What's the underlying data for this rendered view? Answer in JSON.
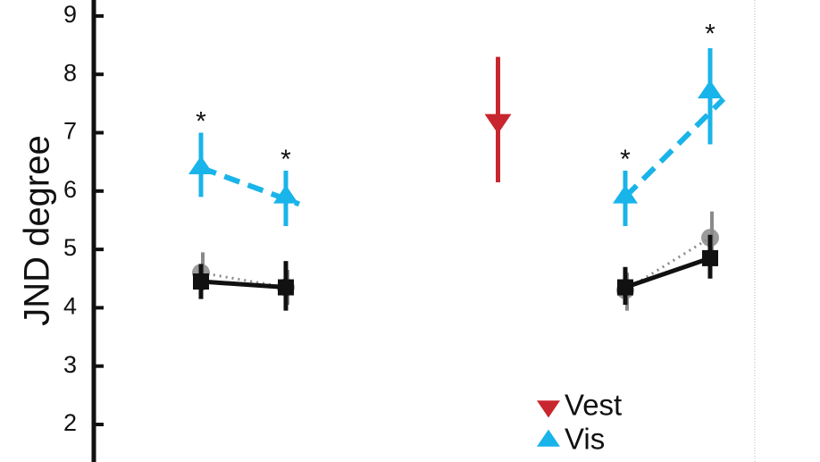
{
  "chart_data": {
    "type": "line",
    "title": "",
    "xlabel": "",
    "ylabel": "JND degree",
    "ylim": [
      1.5,
      9.4
    ],
    "yticks": [
      2,
      3,
      4,
      5,
      6,
      7,
      8,
      9
    ],
    "grid": false,
    "legend_position": "bottom-right",
    "x": [
      1,
      2,
      4.5,
      6,
      7
    ],
    "colors": {
      "vest": "#c8262e",
      "vis": "#19b4ea",
      "combined": "#111111",
      "predicted": "#8a8a8a"
    },
    "series": [
      {
        "name": "Vis",
        "marker": "triangle-up",
        "groups": [
          {
            "x": [
              1,
              2
            ],
            "y": [
              6.4,
              5.9
            ],
            "err": [
              [
                5.9,
                7.0
              ],
              [
                5.4,
                6.35
              ]
            ]
          },
          {
            "x": [
              6,
              7
            ],
            "y": [
              5.9,
              7.7
            ],
            "err": [
              [
                5.4,
                6.35
              ],
              [
                6.8,
                8.45
              ]
            ]
          }
        ]
      },
      {
        "name": "Vest",
        "marker": "triangle-down",
        "groups": [
          {
            "x": [
              4.5
            ],
            "y": [
              7.2
            ],
            "err": [
              [
                6.15,
                8.3
              ]
            ]
          }
        ]
      },
      {
        "name": "",
        "marker": "square",
        "groups": [
          {
            "x": [
              1,
              2
            ],
            "y": [
              4.45,
              4.35
            ],
            "err": [
              [
                4.15,
                4.75
              ],
              [
                3.95,
                4.8
              ]
            ]
          },
          {
            "x": [
              6,
              7
            ],
            "y": [
              4.35,
              4.85
            ],
            "err": [
              [
                4.05,
                4.7
              ],
              [
                4.5,
                5.25
              ]
            ]
          }
        ]
      },
      {
        "name": "",
        "marker": "circle",
        "groups": [
          {
            "x": [
              1,
              2
            ],
            "y": [
              4.6,
              4.35
            ],
            "err": [
              [
                4.3,
                4.95
              ],
              [
                4.05,
                4.65
              ]
            ]
          },
          {
            "x": [
              6,
              7
            ],
            "y": [
              4.3,
              5.2
            ],
            "err": [
              [
                3.95,
                4.6
              ],
              [
                4.8,
                5.65
              ]
            ]
          }
        ]
      }
    ],
    "annotations": [
      {
        "text": "*",
        "x": 1,
        "y": 7.2
      },
      {
        "text": "*",
        "x": 2,
        "y": 6.55
      },
      {
        "text": "*",
        "x": 6,
        "y": 6.55
      },
      {
        "text": "*",
        "x": 7,
        "y": 8.7
      }
    ],
    "legend": [
      {
        "label": "Vest",
        "marker": "triangle-down"
      },
      {
        "label": "Vis",
        "marker": "triangle-up"
      }
    ]
  }
}
